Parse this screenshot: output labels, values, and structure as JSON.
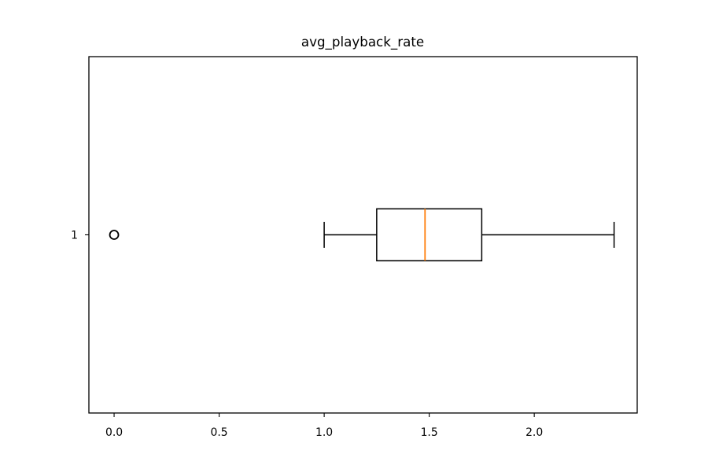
{
  "chart_data": {
    "type": "boxplot",
    "orientation": "horizontal",
    "title": "avg_playback_rate",
    "xlabel": "",
    "ylabel": "",
    "xlim": [
      -0.12,
      2.49
    ],
    "x_ticks": [
      0.0,
      0.5,
      1.0,
      1.5,
      2.0
    ],
    "x_tick_labels": [
      "0.0",
      "0.5",
      "1.0",
      "1.5",
      "2.0"
    ],
    "y_tick_labels": [
      "1"
    ],
    "grid": false,
    "series": [
      {
        "category": "1",
        "whisker_low": 1.0,
        "q1": 1.25,
        "median": 1.48,
        "q3": 1.75,
        "whisker_high": 2.38,
        "outliers": [
          0.0
        ]
      }
    ],
    "colors": {
      "box": "#000000",
      "median": "#ff7f0e",
      "whisker": "#000000",
      "flier": "#000000"
    }
  }
}
